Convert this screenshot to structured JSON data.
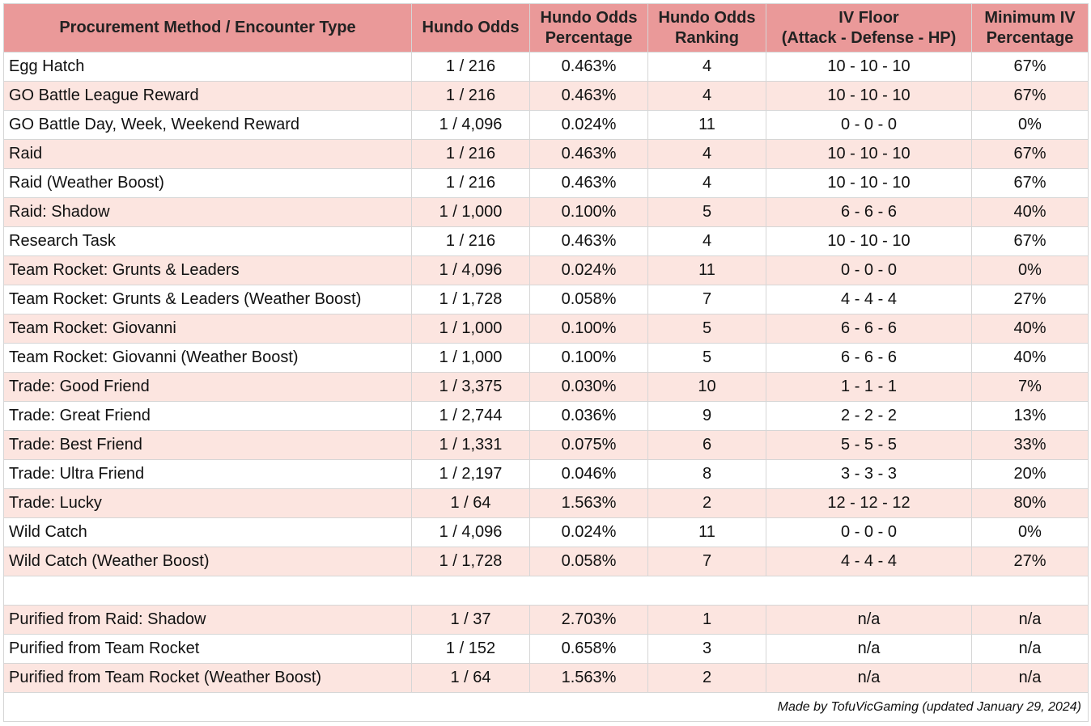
{
  "table": {
    "header": [
      [
        "Procurement Method / Encounter Type"
      ],
      [
        "Hundo Odds"
      ],
      [
        "Hundo Odds",
        "Percentage"
      ],
      [
        "Hundo Odds",
        "Ranking"
      ],
      [
        "IV Floor",
        "(Attack - Defense - HP)"
      ],
      [
        "Minimum IV",
        "Percentage"
      ]
    ],
    "rows": [
      [
        "Egg Hatch",
        "1 / 216",
        "0.463%",
        "4",
        "10 - 10 - 10",
        "67%"
      ],
      [
        "GO Battle League Reward",
        "1 / 216",
        "0.463%",
        "4",
        "10 - 10 - 10",
        "67%"
      ],
      [
        "GO Battle Day, Week, Weekend Reward",
        "1 / 4,096",
        "0.024%",
        "11",
        "0 - 0 - 0",
        "0%"
      ],
      [
        "Raid",
        "1 / 216",
        "0.463%",
        "4",
        "10 - 10 - 10",
        "67%"
      ],
      [
        "Raid (Weather Boost)",
        "1 / 216",
        "0.463%",
        "4",
        "10 - 10 - 10",
        "67%"
      ],
      [
        "Raid: Shadow",
        "1 / 1,000",
        "0.100%",
        "5",
        "6 - 6 - 6",
        "40%"
      ],
      [
        "Research Task",
        "1 / 216",
        "0.463%",
        "4",
        "10 - 10 - 10",
        "67%"
      ],
      [
        "Team Rocket: Grunts & Leaders",
        "1 / 4,096",
        "0.024%",
        "11",
        "0 - 0 - 0",
        "0%"
      ],
      [
        "Team Rocket: Grunts & Leaders (Weather Boost)",
        "1 / 1,728",
        "0.058%",
        "7",
        "4 - 4 - 4",
        "27%"
      ],
      [
        "Team Rocket: Giovanni",
        "1 / 1,000",
        "0.100%",
        "5",
        "6 - 6 - 6",
        "40%"
      ],
      [
        "Team Rocket: Giovanni (Weather Boost)",
        "1 / 1,000",
        "0.100%",
        "5",
        "6 - 6 - 6",
        "40%"
      ],
      [
        "Trade: Good Friend",
        "1 / 3,375",
        "0.030%",
        "10",
        "1 - 1 - 1",
        "7%"
      ],
      [
        "Trade: Great Friend",
        "1 / 2,744",
        "0.036%",
        "9",
        "2 - 2 - 2",
        "13%"
      ],
      [
        "Trade: Best Friend",
        "1 / 1,331",
        "0.075%",
        "6",
        "5 - 5 - 5",
        "33%"
      ],
      [
        "Trade: Ultra Friend",
        "1 / 2,197",
        "0.046%",
        "8",
        "3 - 3 - 3",
        "20%"
      ],
      [
        "Trade: Lucky",
        "1 / 64",
        "1.563%",
        "2",
        "12 - 12 - 12",
        "80%"
      ],
      [
        "Wild Catch",
        "1 / 4,096",
        "0.024%",
        "11",
        "0 - 0 - 0",
        "0%"
      ],
      [
        "Wild Catch (Weather Boost)",
        "1 / 1,728",
        "0.058%",
        "7",
        "4 - 4 - 4",
        "27%"
      ]
    ],
    "purified_rows": [
      [
        "Purified from Raid: Shadow",
        "1 / 37",
        "2.703%",
        "1",
        "n/a",
        "n/a"
      ],
      [
        "Purified from Team Rocket",
        "1 / 152",
        "0.658%",
        "3",
        "n/a",
        "n/a"
      ],
      [
        "Purified from Team Rocket (Weather Boost)",
        "1 / 64",
        "1.563%",
        "2",
        "n/a",
        "n/a"
      ]
    ],
    "footer": "Made by TofuVicGaming (updated January 29, 2024)"
  }
}
